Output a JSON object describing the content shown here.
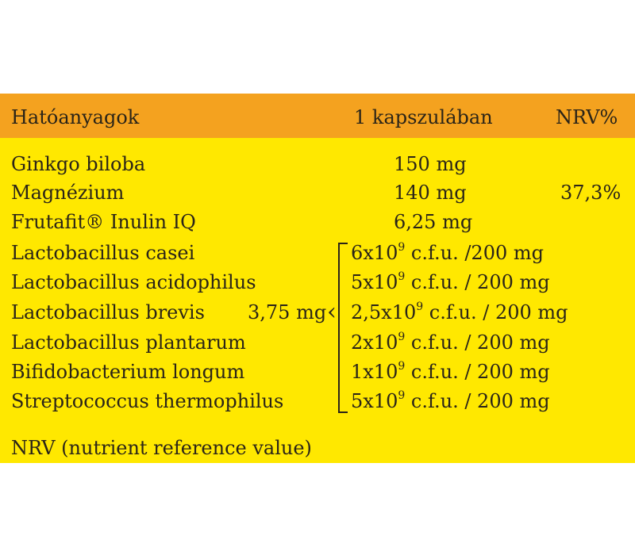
{
  "table": {
    "headers": {
      "ingredient": "Hatóanyagok",
      "amount": "1 kapszulában",
      "nrv": "NRV%"
    },
    "rows": [
      {
        "name": "Ginkgo biloba",
        "amount": "150 mg",
        "nrv": ""
      },
      {
        "name": "Magnézium",
        "amount": "140 mg",
        "nrv": "37,3%"
      },
      {
        "name": "Frutafit® Inulin IQ",
        "amount": "6,25 mg",
        "nrv": ""
      }
    ],
    "probiotics": {
      "group_amount": "3,75 mg",
      "items": [
        {
          "name": "Lactobacillus casei",
          "count": "6x10",
          "exp": "9",
          "unit": " c.f.u. /200 mg"
        },
        {
          "name": "Lactobacillus acidophilus",
          "count": "5x10",
          "exp": "9",
          "unit": " c.f.u. / 200 mg"
        },
        {
          "name": "Lactobacillus brevis",
          "count": "2,5x10",
          "exp": "9",
          "unit": " c.f.u. / 200 mg"
        },
        {
          "name": "Lactobacillus plantarum",
          "count": "2x10",
          "exp": "9",
          "unit": " c.f.u. / 200 mg"
        },
        {
          "name": "Bifidobacterium longum",
          "count": "1x10",
          "exp": "9",
          "unit": " c.f.u. / 200 mg"
        },
        {
          "name": "Streptococcus thermophilus",
          "count": "5x10",
          "exp": "9",
          "unit": " c.f.u. / 200 mg"
        }
      ]
    },
    "footnote": "NRV (nutrient reference value)"
  },
  "colors": {
    "header_bg": "#f4a21f",
    "body_bg": "#ffe800",
    "text": "#2a2418"
  }
}
